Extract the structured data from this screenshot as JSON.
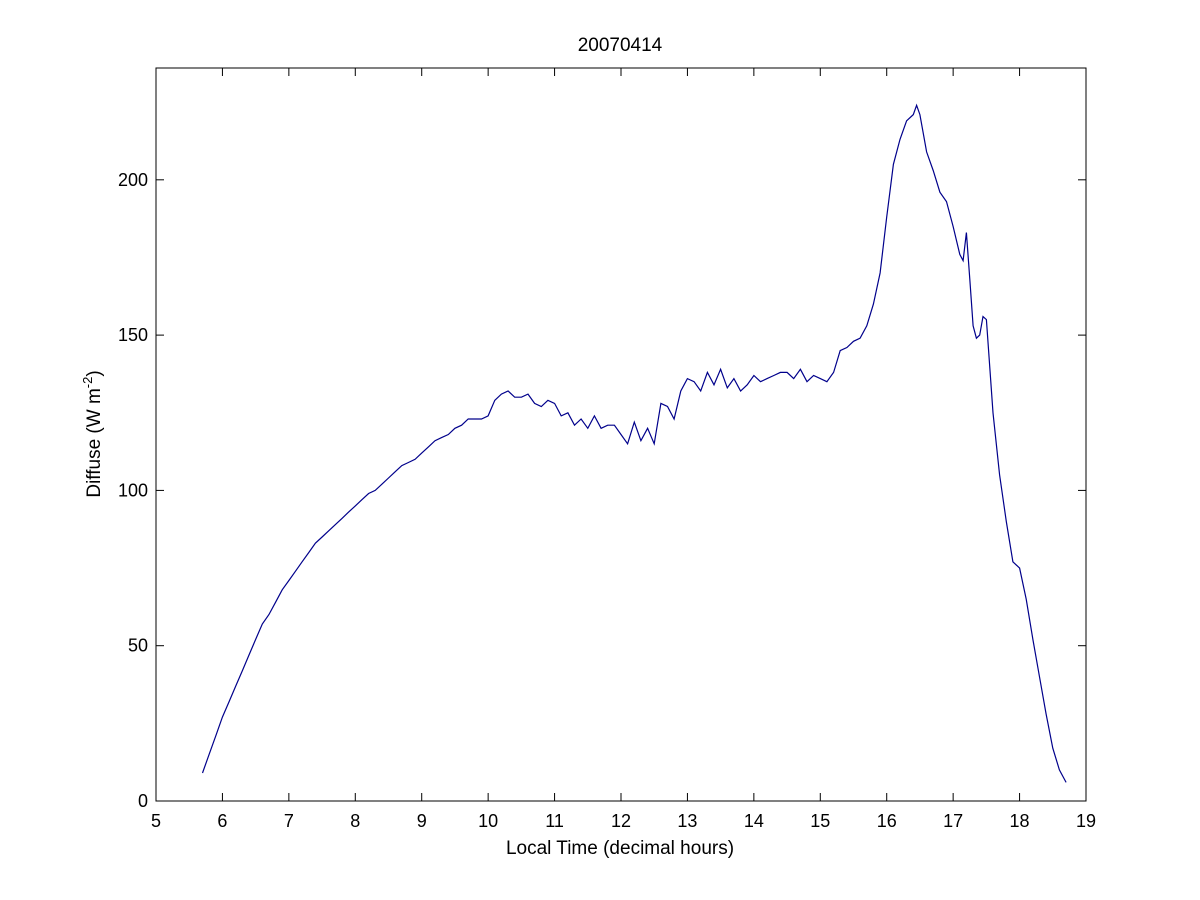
{
  "chart_data": {
    "type": "line",
    "title": "20070414",
    "xlabel": "Local Time (decimal hours)",
    "ylabel": {
      "text": "Diffuse (W m",
      "superscript": "-2",
      "suffix": ")"
    },
    "xlim": [
      5,
      19
    ],
    "ylim": [
      0,
      236
    ],
    "xticks": [
      "5",
      "6",
      "7",
      "8",
      "9",
      "10",
      "11",
      "12",
      "13",
      "14",
      "15",
      "16",
      "17",
      "18",
      "19"
    ],
    "yticks": [
      "0",
      "50",
      "100",
      "150",
      "200"
    ],
    "grid": false,
    "line_color": "#00008b",
    "series": [
      {
        "x": [
          5.7,
          5.8,
          5.9,
          6.0,
          6.1,
          6.2,
          6.3,
          6.4,
          6.5,
          6.6,
          6.7,
          6.8,
          6.9,
          7.0,
          7.1,
          7.2,
          7.3,
          7.4,
          7.5,
          7.6,
          7.7,
          7.8,
          7.9,
          8.0,
          8.1,
          8.2,
          8.3,
          8.4,
          8.5,
          8.6,
          8.7,
          8.8,
          8.9,
          9.0,
          9.1,
          9.2,
          9.3,
          9.4,
          9.5,
          9.6,
          9.7,
          9.8,
          9.9,
          10.0,
          10.1,
          10.2,
          10.3,
          10.4,
          10.5,
          10.6,
          10.7,
          10.8,
          10.9,
          11.0,
          11.1,
          11.2,
          11.3,
          11.4,
          11.5,
          11.6,
          11.7,
          11.8,
          11.9,
          12.0,
          12.1,
          12.2,
          12.3,
          12.4,
          12.5,
          12.6,
          12.7,
          12.8,
          12.9,
          13.0,
          13.1,
          13.2,
          13.3,
          13.4,
          13.5,
          13.6,
          13.7,
          13.8,
          13.9,
          14.0,
          14.1,
          14.2,
          14.3,
          14.4,
          14.5,
          14.6,
          14.7,
          14.8,
          14.9,
          15.0,
          15.1,
          15.2,
          15.3,
          15.4,
          15.5,
          15.6,
          15.7,
          15.8,
          15.9,
          16.0,
          16.1,
          16.2,
          16.3,
          16.4,
          16.45,
          16.5,
          16.6,
          16.7,
          16.8,
          16.9,
          17.0,
          17.1,
          17.15,
          17.2,
          17.25,
          17.3,
          17.35,
          17.4,
          17.45,
          17.5,
          17.6,
          17.7,
          17.8,
          17.9,
          18.0,
          18.1,
          18.2,
          18.3,
          18.4,
          18.5,
          18.6,
          18.7
        ],
        "y": [
          9,
          15,
          21,
          27,
          32,
          37,
          42,
          47,
          52,
          57,
          60,
          64,
          68,
          71,
          74,
          77,
          80,
          83,
          85,
          87,
          89,
          91,
          93,
          95,
          97,
          99,
          100,
          102,
          104,
          106,
          108,
          109,
          110,
          112,
          114,
          116,
          117,
          118,
          120,
          121,
          123,
          123,
          123,
          124,
          129,
          131,
          132,
          130,
          130,
          131,
          128,
          127,
          129,
          128,
          124,
          125,
          121,
          123,
          120,
          124,
          120,
          121,
          121,
          118,
          115,
          122,
          116,
          120,
          115,
          128,
          127,
          123,
          132,
          136,
          135,
          132,
          138,
          134,
          139,
          133,
          136,
          132,
          134,
          137,
          135,
          136,
          137,
          138,
          138,
          136,
          139,
          135,
          137,
          136,
          135,
          138,
          145,
          146,
          148,
          149,
          153,
          160,
          170,
          188,
          205,
          213,
          219,
          221,
          224,
          221,
          209,
          203,
          196,
          193,
          185,
          176,
          174,
          183,
          168,
          153,
          149,
          150,
          156,
          155,
          125,
          105,
          90,
          77,
          75,
          65,
          52,
          40,
          28,
          17,
          10,
          6
        ]
      }
    ]
  }
}
